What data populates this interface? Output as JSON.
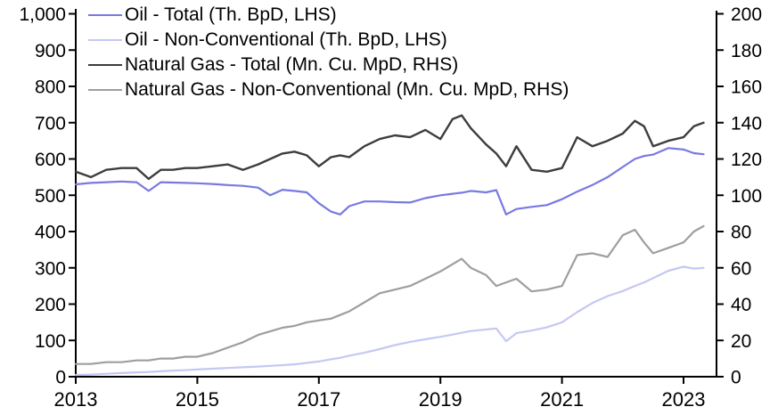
{
  "chart_data": {
    "type": "line",
    "grid": false,
    "legend_position": "top-left",
    "background": "#ffffff",
    "axis_color": "#000000",
    "x": [
      2013.0,
      2013.25,
      2013.5,
      2013.75,
      2014.0,
      2014.2,
      2014.4,
      2014.6,
      2014.8,
      2015.0,
      2015.25,
      2015.5,
      2015.75,
      2016.0,
      2016.2,
      2016.4,
      2016.6,
      2016.8,
      2017.0,
      2017.2,
      2017.35,
      2017.5,
      2017.75,
      2018.0,
      2018.25,
      2018.5,
      2018.75,
      2019.0,
      2019.2,
      2019.35,
      2019.5,
      2019.75,
      2019.92,
      2020.08,
      2020.25,
      2020.5,
      2020.75,
      2021.0,
      2021.25,
      2021.5,
      2021.75,
      2022.0,
      2022.2,
      2022.35,
      2022.5,
      2022.75,
      2023.0,
      2023.17,
      2023.33
    ],
    "series": [
      {
        "id": "oil-total",
        "name": "Oil - Total (Th. BpD, LHS)",
        "axis": "left",
        "color": "#7879e1",
        "width": 2.2,
        "values": [
          530,
          534,
          536,
          538,
          536,
          512,
          536,
          535,
          534,
          533,
          531,
          528,
          526,
          521,
          500,
          515,
          512,
          508,
          478,
          455,
          447,
          470,
          483,
          483,
          481,
          480,
          492,
          500,
          504,
          507,
          512,
          508,
          514,
          447,
          462,
          468,
          473,
          489,
          510,
          528,
          550,
          578,
          600,
          608,
          612,
          630,
          626,
          616,
          613
        ]
      },
      {
        "id": "oil-non-conventional",
        "name": "Oil - Non-Conventional (Th. BpD, LHS)",
        "axis": "left",
        "color": "#c5c8f3",
        "width": 2.2,
        "values": [
          5,
          6,
          8,
          10,
          12,
          13,
          15,
          17,
          18,
          20,
          22,
          24,
          26,
          28,
          30,
          32,
          34,
          38,
          42,
          48,
          52,
          58,
          66,
          76,
          87,
          96,
          103,
          110,
          116,
          121,
          126,
          130,
          133,
          98,
          120,
          127,
          136,
          150,
          178,
          203,
          222,
          236,
          250,
          260,
          272,
          292,
          303,
          298,
          300
        ]
      },
      {
        "id": "natural-gas-total",
        "name": "Natural Gas - Total (Mn. Cu. MpD, RHS)",
        "axis": "right",
        "color": "#3d3d3d",
        "width": 2.4,
        "values": [
          113,
          110,
          114,
          115,
          115,
          109,
          114,
          114,
          115,
          115,
          116,
          117,
          114,
          117,
          120,
          123,
          124,
          122,
          116,
          121,
          122,
          121,
          127,
          131,
          133,
          132,
          136,
          131,
          142,
          144,
          137,
          128,
          123,
          116,
          127,
          114,
          113,
          115,
          132,
          127,
          130,
          134,
          141,
          138,
          127,
          130,
          132,
          138,
          140
        ]
      },
      {
        "id": "natural-gas-non-conventional",
        "name": "Natural Gas - Non-Conventional (Mn. Cu. MpD, RHS)",
        "axis": "right",
        "color": "#9e9e9e",
        "width": 2.2,
        "values": [
          7,
          7,
          8,
          8,
          9,
          9,
          10,
          10,
          11,
          11,
          13,
          16,
          19,
          23,
          25,
          27,
          28,
          30,
          31,
          32,
          34,
          36,
          41,
          46,
          48,
          50,
          54,
          58,
          62,
          65,
          60,
          56,
          50,
          52,
          54,
          47,
          48,
          50,
          67,
          68,
          66,
          78,
          81,
          74,
          68,
          71,
          74,
          80,
          83
        ]
      }
    ],
    "left_axis": {
      "min": 0,
      "max": 1000,
      "tick_step": 100,
      "tick_labels": [
        "0",
        "100",
        "200",
        "300",
        "400",
        "500",
        "600",
        "700",
        "800",
        "900",
        "1,000"
      ]
    },
    "right_axis": {
      "min": 0,
      "max": 200,
      "tick_step": 20,
      "tick_labels": [
        "0",
        "20",
        "40",
        "60",
        "80",
        "100",
        "120",
        "140",
        "160",
        "180",
        "200"
      ]
    },
    "x_axis": {
      "min": 2013,
      "max": 2023.55,
      "tick_values": [
        2013,
        2015,
        2017,
        2019,
        2021,
        2023
      ],
      "tick_labels": [
        "2013",
        "2015",
        "2017",
        "2019",
        "2021",
        "2023"
      ]
    }
  }
}
